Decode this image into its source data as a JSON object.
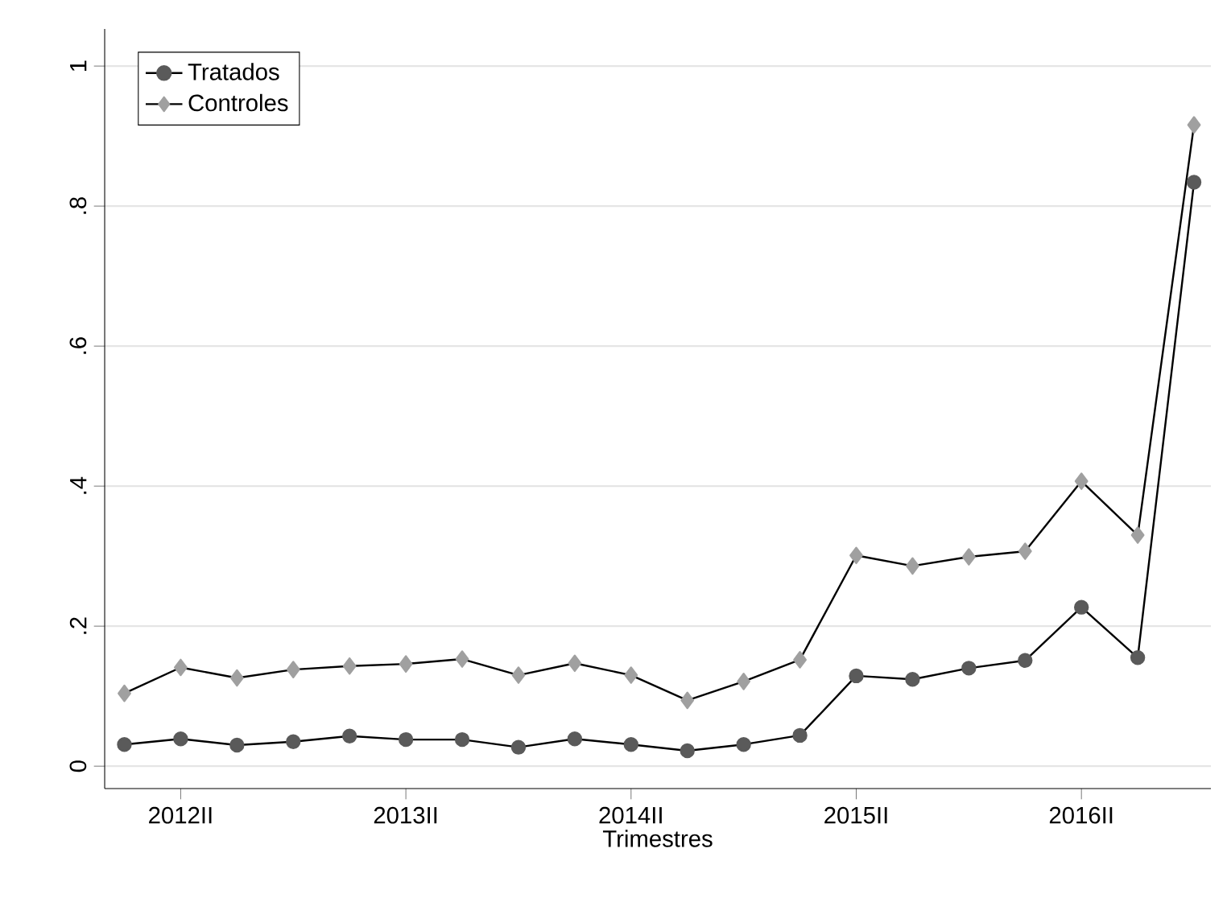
{
  "chart_data": {
    "type": "line",
    "xlabel": "Trimestres",
    "categories": [
      null,
      "2012II",
      null,
      null,
      null,
      "2013II",
      null,
      null,
      null,
      "2014II",
      null,
      null,
      null,
      "2015II",
      null,
      null,
      null,
      "2016II",
      null,
      null
    ],
    "series": [
      {
        "name": "Tratados",
        "color": "#5a5a5a",
        "marker": "circle",
        "values": [
          0.031,
          0.039,
          0.03,
          0.035,
          0.043,
          0.038,
          0.038,
          0.027,
          0.039,
          0.031,
          0.022,
          0.031,
          0.044,
          0.129,
          0.124,
          0.14,
          0.151,
          0.227,
          0.155,
          0.834
        ]
      },
      {
        "name": "Controles",
        "color": "#a0a0a0",
        "marker": "diamond",
        "values": [
          0.104,
          0.141,
          0.126,
          0.138,
          0.143,
          0.146,
          0.153,
          0.13,
          0.147,
          0.13,
          0.094,
          0.121,
          0.152,
          0.301,
          0.286,
          0.299,
          0.307,
          0.407,
          0.33,
          0.916
        ]
      }
    ],
    "ylim": [
      -0.032,
      1.053
    ],
    "yticks": [
      0,
      {
        "value": 0.2,
        "label": ".2"
      },
      {
        "value": 0.4,
        "label": ".4"
      },
      {
        "value": 0.6,
        "label": ".6"
      },
      {
        "value": 0.8,
        "label": ".8"
      },
      1
    ],
    "grid": "y",
    "legend": "top left",
    "line_style": "solid"
  }
}
